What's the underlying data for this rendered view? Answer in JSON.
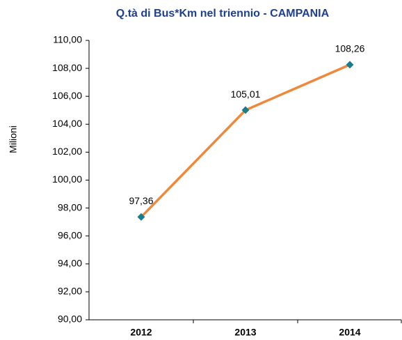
{
  "chart_data": {
    "type": "line",
    "title": "Q.tà di Bus*Km nel triennio - CAMPANIA",
    "y_label": "Milioni",
    "categories": [
      "2012",
      "2013",
      "2014"
    ],
    "series": [
      {
        "name": "Bus*Km",
        "color": "#f0883a",
        "marker_color": "#1b7d8c",
        "values": [
          97.36,
          105.01,
          108.26
        ],
        "value_labels": [
          "97,36",
          "105,01",
          "108,26"
        ]
      }
    ],
    "ylim": [
      90,
      110
    ],
    "yticks": [
      {
        "value": 90,
        "label": "90,00"
      },
      {
        "value": 92,
        "label": "92,00"
      },
      {
        "value": 94,
        "label": "94,00"
      },
      {
        "value": 96,
        "label": "96,00"
      },
      {
        "value": 98,
        "label": "98,00"
      },
      {
        "value": 100,
        "label": "100,00"
      },
      {
        "value": 102,
        "label": "102,00"
      },
      {
        "value": 104,
        "label": "104,00"
      },
      {
        "value": 106,
        "label": "106,00"
      },
      {
        "value": 108,
        "label": "108,00"
      },
      {
        "value": 110,
        "label": "110,00"
      }
    ],
    "grid": false,
    "legend": false
  }
}
